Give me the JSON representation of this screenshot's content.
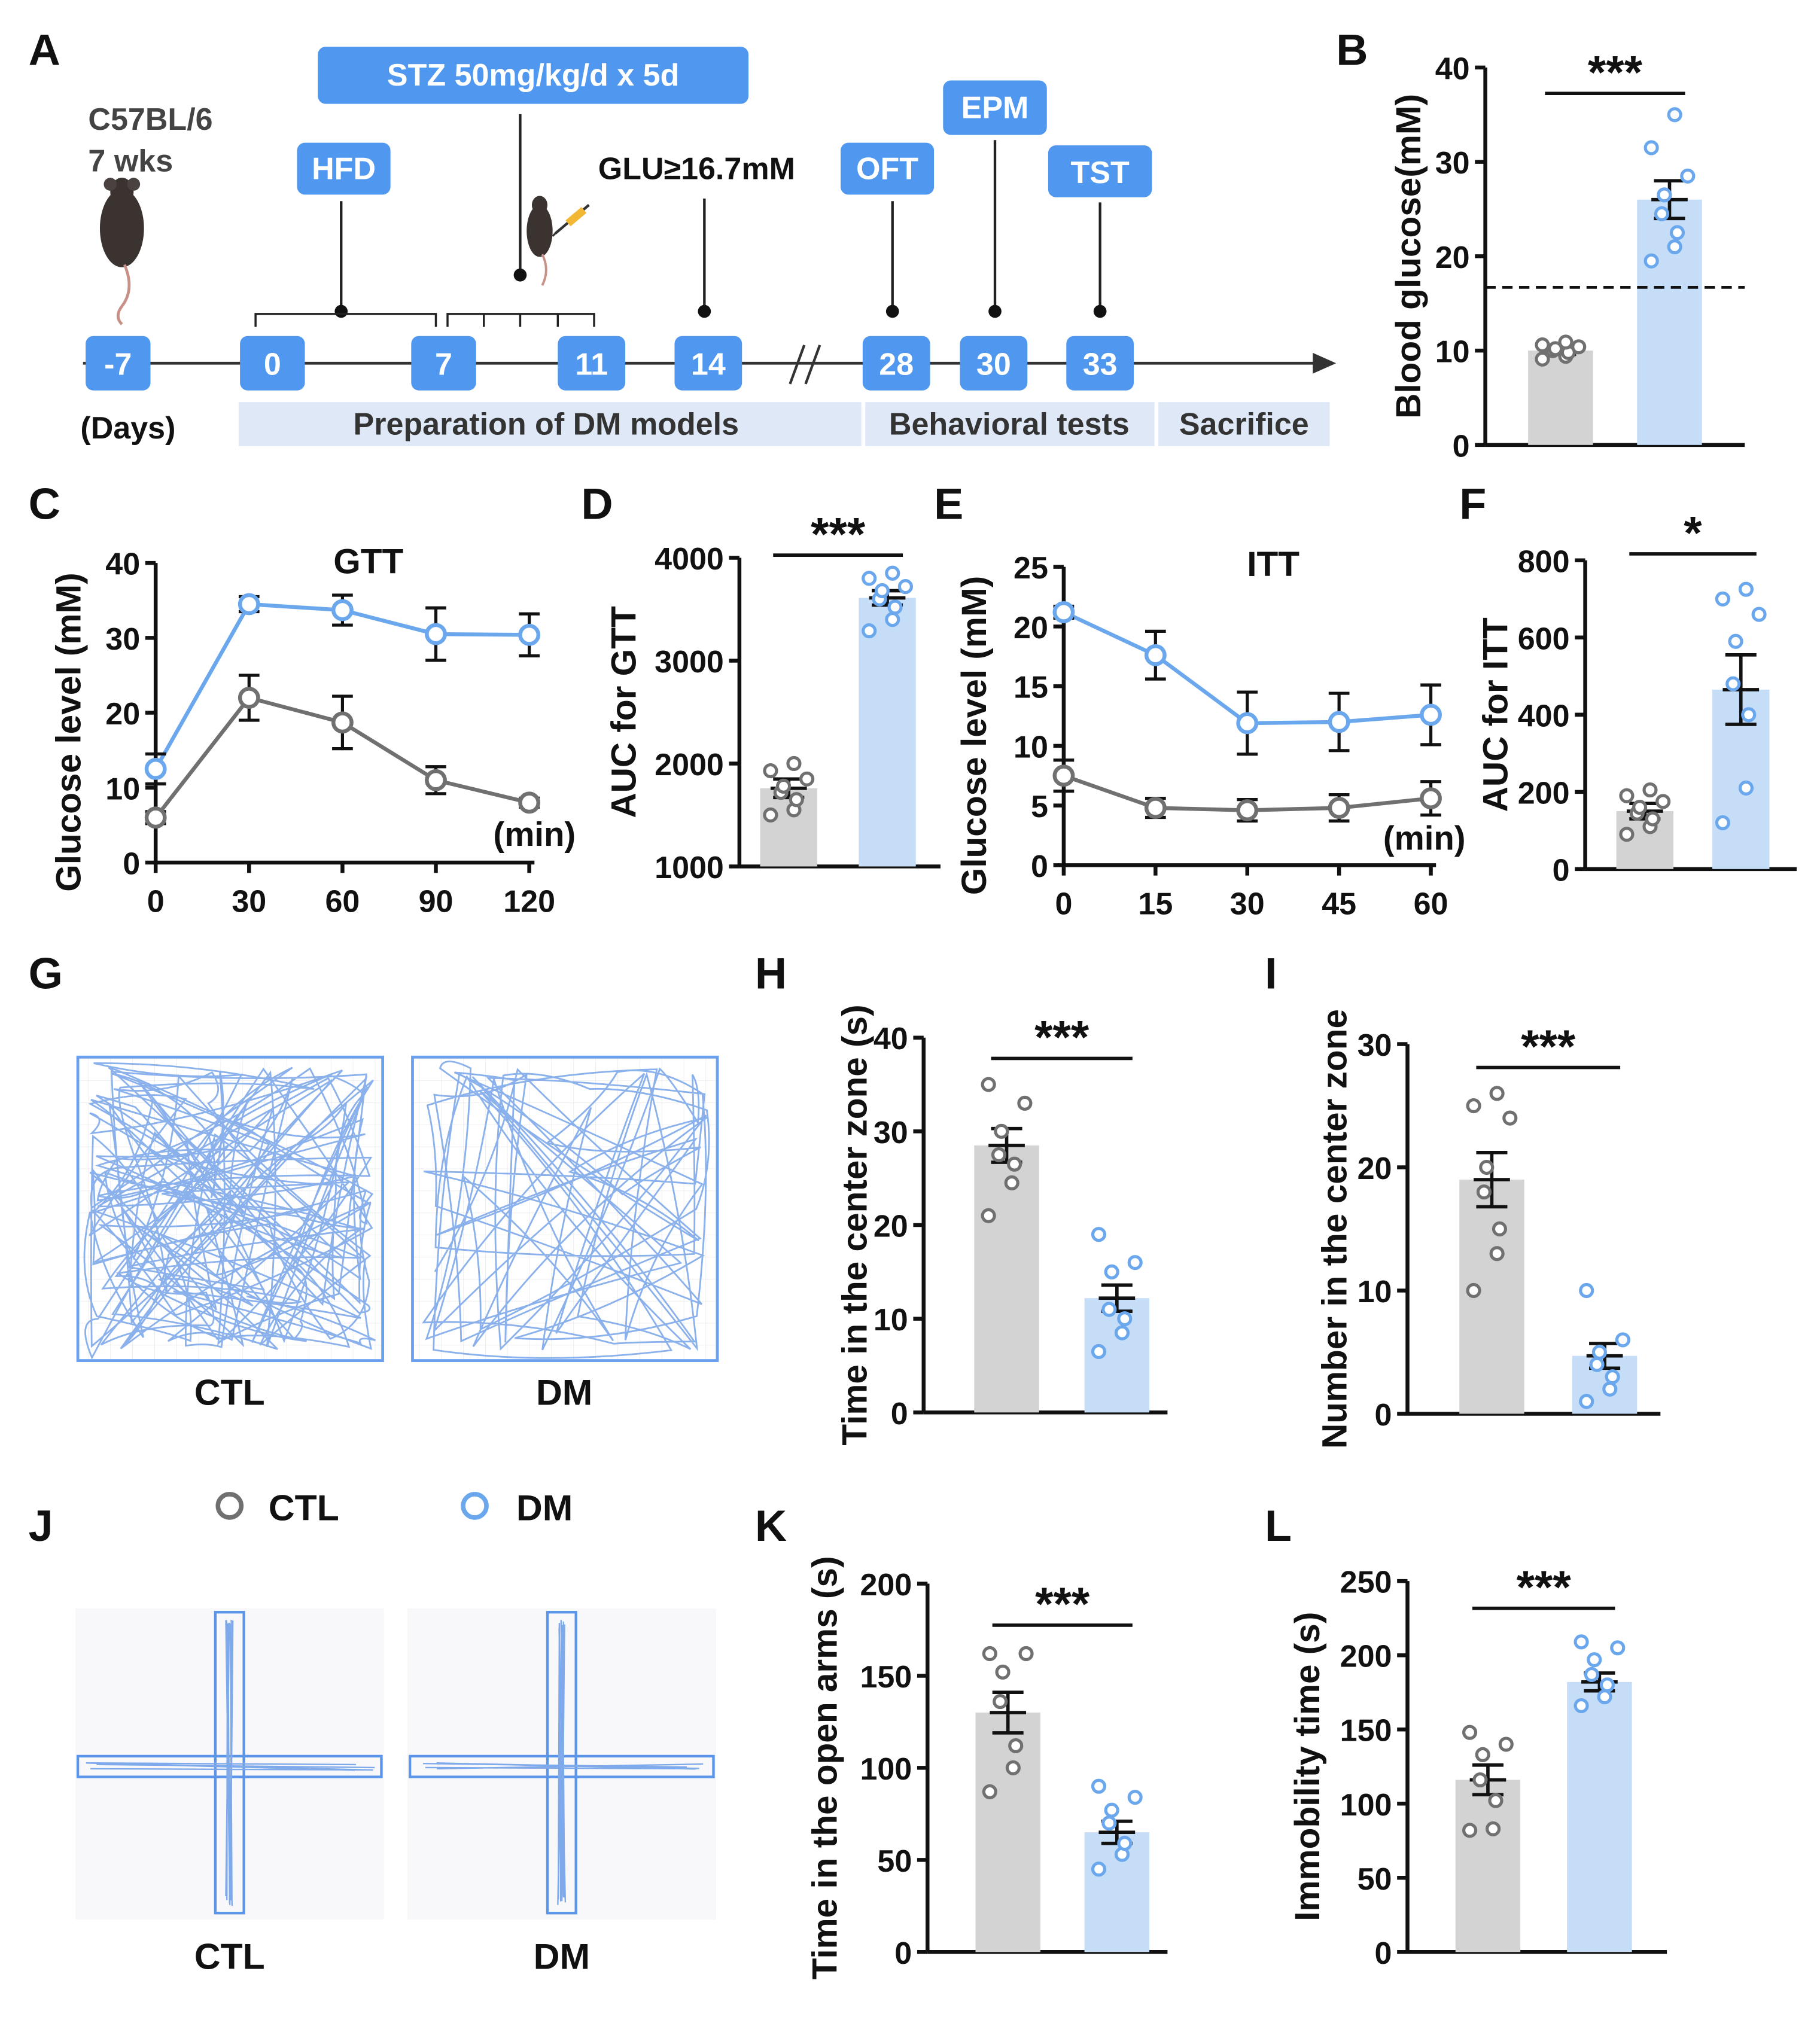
{
  "colors": {
    "ctl_stroke": "#707070",
    "ctl_bar": "#d3d3d3",
    "dm_stroke": "#6aa7ec",
    "dm_bar": "#c6ddf8",
    "box_blue": "#4f97ef",
    "zone_fill": "#dfe8f6",
    "track": "#7ea9ea"
  },
  "panel_letters": [
    "A",
    "B",
    "C",
    "D",
    "E",
    "F",
    "G",
    "H",
    "I",
    "J",
    "K",
    "L"
  ],
  "timeline": {
    "strain_line1": "C57BL/6",
    "strain_line2": "7 wks",
    "days_label": "(Days)",
    "day_ticks": [
      "-7",
      "0",
      "7",
      "11",
      "14",
      "28",
      "30",
      "33"
    ],
    "events": [
      {
        "label": "STZ 50mg/kg/d x 5d"
      },
      {
        "label": "HFD"
      },
      {
        "label": "GLU≥16.7mM"
      },
      {
        "label": "OFT"
      },
      {
        "label": "EPM"
      },
      {
        "label": "TST"
      }
    ],
    "phases": [
      "Preparation of DM models",
      "Behavioral tests",
      "Sacrifice"
    ],
    "icons": [
      "mouse-icon",
      "syringe-icon"
    ]
  },
  "legend": {
    "ctl": "CTL",
    "dm": "DM"
  },
  "arena": {
    "oft_labels": [
      "CTL",
      "DM"
    ],
    "epm_labels": [
      "CTL",
      "DM"
    ]
  },
  "chart_data": [
    {
      "id": "B",
      "type": "bar",
      "ylabel": "Blood glucose(mM)",
      "ylim": [
        0,
        40
      ],
      "yticks": [
        0,
        10,
        20,
        30,
        40
      ],
      "categories": [
        "CTL",
        "DM"
      ],
      "values": [
        10.0,
        26.0
      ],
      "sem": [
        0.4,
        2.0
      ],
      "points": [
        [
          9.1,
          9.4,
          9.8,
          10.0,
          10.2,
          10.4,
          10.6,
          10.9
        ],
        [
          19.5,
          21.0,
          22.5,
          24.5,
          26.5,
          28.5,
          31.5,
          35.0
        ]
      ],
      "threshold": 16.7,
      "significance": "***"
    },
    {
      "id": "C",
      "type": "line",
      "title": "GTT",
      "ylabel": "Glucose level (mM)",
      "xlabel": "(min)",
      "x": [
        0,
        30,
        60,
        90,
        120
      ],
      "ylim": [
        0,
        40
      ],
      "yticks": [
        0,
        10,
        20,
        30,
        40
      ],
      "series": [
        {
          "name": "CTL",
          "values": [
            6.0,
            22.0,
            18.7,
            11.0,
            8.0
          ],
          "sem": [
            0.8,
            3.0,
            3.5,
            1.8,
            0.6
          ]
        },
        {
          "name": "DM",
          "values": [
            12.5,
            34.5,
            33.7,
            30.5,
            30.4
          ],
          "sem": [
            2.0,
            1.0,
            2.0,
            3.5,
            2.8
          ]
        }
      ]
    },
    {
      "id": "D",
      "type": "bar",
      "ylabel": "AUC for GTT",
      "ylim": [
        1000,
        4000
      ],
      "yticks": [
        1000,
        2000,
        3000,
        4000
      ],
      "categories": [
        "CTL",
        "DM"
      ],
      "values": [
        1760,
        3610
      ],
      "sem": [
        90,
        70
      ],
      "points": [
        [
          1500,
          1550,
          1650,
          1720,
          1780,
          1850,
          1930,
          2000
        ],
        [
          3290,
          3400,
          3520,
          3600,
          3680,
          3720,
          3800,
          3850
        ]
      ],
      "significance": "***"
    },
    {
      "id": "E",
      "type": "line",
      "title": "ITT",
      "ylabel": "Glucose level (mM)",
      "xlabel": "(min)",
      "x": [
        0,
        15,
        30,
        45,
        60
      ],
      "ylim": [
        0,
        25
      ],
      "yticks": [
        0,
        5,
        10,
        15,
        20,
        25
      ],
      "series": [
        {
          "name": "CTL",
          "values": [
            7.5,
            4.8,
            4.6,
            4.8,
            5.6
          ],
          "sem": [
            1.3,
            0.8,
            0.9,
            1.1,
            1.4
          ]
        },
        {
          "name": "DM",
          "values": [
            21.2,
            17.6,
            11.9,
            12.0,
            12.6
          ],
          "sem": [
            0.5,
            2.0,
            2.6,
            2.4,
            2.5
          ]
        }
      ]
    },
    {
      "id": "F",
      "type": "bar",
      "ylabel": "AUC for ITT",
      "ylim": [
        0,
        800
      ],
      "yticks": [
        0,
        200,
        400,
        600,
        800
      ],
      "categories": [
        "CTL",
        "DM"
      ],
      "values": [
        150,
        465
      ],
      "sem": [
        20,
        90
      ],
      "points": [
        [
          90,
          110,
          130,
          145,
          160,
          175,
          190,
          205
        ],
        [
          120,
          210,
          400,
          480,
          590,
          660,
          700,
          725
        ]
      ],
      "significance": "*"
    },
    {
      "id": "H",
      "type": "bar",
      "ylabel": "Time in the center zone (s)",
      "ylim": [
        0,
        40
      ],
      "yticks": [
        0,
        10,
        20,
        30,
        40
      ],
      "categories": [
        "CTL",
        "DM"
      ],
      "values": [
        28.5,
        12.2
      ],
      "sem": [
        1.8,
        1.4
      ],
      "points": [
        [
          21.0,
          24.5,
          26.5,
          27.5,
          30.0,
          33.0,
          35.0
        ],
        [
          6.5,
          8.5,
          10.0,
          11.0,
          15.0,
          16.0,
          19.0
        ]
      ],
      "significance": "***"
    },
    {
      "id": "I",
      "type": "bar",
      "ylabel": "Number in the center zone",
      "ylim": [
        0,
        30
      ],
      "yticks": [
        0,
        10,
        20,
        30
      ],
      "categories": [
        "CTL",
        "DM"
      ],
      "values": [
        19.0,
        4.7
      ],
      "sem": [
        2.2,
        1.0
      ],
      "points": [
        [
          10,
          13,
          15,
          18,
          20,
          24,
          25,
          26
        ],
        [
          1,
          2,
          3,
          4,
          5,
          6,
          10
        ]
      ],
      "significance": "***"
    },
    {
      "id": "K",
      "type": "bar",
      "ylabel": "Time in the open arms (s)",
      "ylim": [
        0,
        200
      ],
      "yticks": [
        0,
        50,
        100,
        150,
        200
      ],
      "categories": [
        "CTL",
        "DM"
      ],
      "values": [
        130,
        65
      ],
      "sem": [
        11,
        6
      ],
      "points": [
        [
          87,
          100,
          112,
          136,
          152,
          162,
          162
        ],
        [
          45,
          53,
          59,
          70,
          77,
          84,
          90
        ]
      ],
      "significance": "***"
    },
    {
      "id": "L",
      "type": "bar",
      "ylabel": "Immobility time (s)",
      "ylim": [
        0,
        250
      ],
      "yticks": [
        0,
        50,
        100,
        150,
        200,
        250
      ],
      "categories": [
        "CTL",
        "DM"
      ],
      "values": [
        116,
        182
      ],
      "sem": [
        10,
        6
      ],
      "points": [
        [
          82,
          83,
          102,
          116,
          133,
          140,
          148
        ],
        [
          166,
          172,
          180,
          187,
          197,
          205,
          209
        ]
      ],
      "significance": "***"
    }
  ]
}
